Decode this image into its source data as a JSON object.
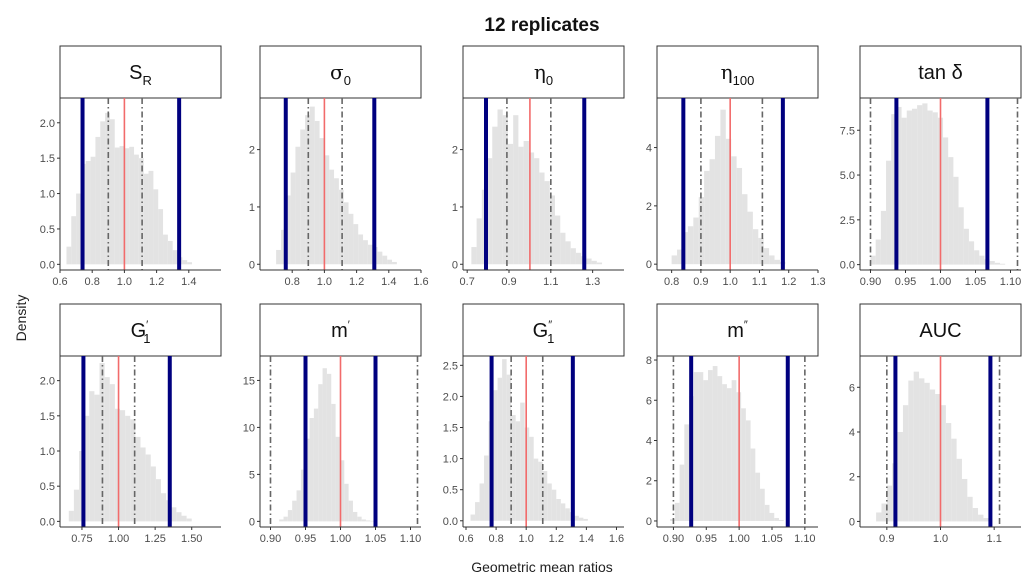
{
  "figure": {
    "title": "12 replicates",
    "xlabel": "Geometric mean ratios",
    "ylabel": "Density"
  },
  "colors": {
    "hist": "#e3e3e3",
    "center": "#f26b6b",
    "bound": "#00007f",
    "dash": "#666666",
    "strip_bg": "#ffffff",
    "strip_border": "#333333",
    "axis": "#333333"
  },
  "chart_data": [
    {
      "type": "bar",
      "strip_label": "S",
      "strip_sub": "R",
      "strip_sup": "",
      "strip_greek": false,
      "xlim": [
        0.6,
        1.6
      ],
      "ylim": [
        -0.08,
        2.35
      ],
      "xticks": [
        0.6,
        0.8,
        1.0,
        1.2,
        1.4
      ],
      "xtick_labels": [
        "0.6",
        "0.8",
        "1.0",
        "1.2",
        "1.4"
      ],
      "yticks": [
        0,
        0.5,
        1.0,
        1.5,
        2.0
      ],
      "ytick_labels": [
        "0.0",
        "0.5",
        "1.0",
        "1.5",
        "2.0"
      ],
      "center": 1.0,
      "bounds": [
        0.74,
        1.34
      ],
      "dashed": [
        0.9,
        1.11
      ],
      "bin_start": 0.64,
      "bin_width": 0.03,
      "values": [
        0.25,
        0.68,
        1.0,
        1.42,
        1.46,
        1.52,
        1.8,
        2.02,
        2.14,
        2.05,
        1.65,
        1.67,
        1.64,
        1.66,
        1.55,
        1.5,
        1.28,
        1.32,
        1.06,
        0.78,
        0.42,
        0.33,
        0.2,
        0.1,
        0.06,
        0.03
      ]
    },
    {
      "type": "bar",
      "strip_label": "σ",
      "strip_sub": "0",
      "strip_sup": "",
      "strip_greek": true,
      "xlim": [
        0.6,
        1.6
      ],
      "ylim": [
        -0.1,
        2.9
      ],
      "xticks": [
        0.8,
        1.0,
        1.2,
        1.4,
        1.6
      ],
      "xtick_labels": [
        "0.8",
        "1.0",
        "1.2",
        "1.4",
        "1.6"
      ],
      "yticks": [
        0,
        1,
        2
      ],
      "ytick_labels": [
        "0",
        "1",
        "2"
      ],
      "center": 1.0,
      "bounds": [
        0.76,
        1.31
      ],
      "dashed": [
        0.9,
        1.11
      ],
      "bin_start": 0.7,
      "bin_width": 0.03,
      "values": [
        0.25,
        0.6,
        1.2,
        1.6,
        2.05,
        2.35,
        2.6,
        2.75,
        2.5,
        2.2,
        1.9,
        1.65,
        1.5,
        1.3,
        1.08,
        0.88,
        0.7,
        0.52,
        0.42,
        0.34,
        0.3,
        0.22,
        0.15,
        0.08,
        0.04
      ]
    },
    {
      "type": "bar",
      "strip_label": "η",
      "strip_sub": "0",
      "strip_sup": "",
      "strip_greek": true,
      "xlim": [
        0.68,
        1.45
      ],
      "ylim": [
        -0.1,
        2.9
      ],
      "xticks": [
        0.7,
        0.9,
        1.1,
        1.3
      ],
      "xtick_labels": [
        "0.7",
        "0.9",
        "1.1",
        "1.3"
      ],
      "yticks": [
        0,
        1,
        2
      ],
      "ytick_labels": [
        "0",
        "1",
        "2"
      ],
      "center": 1.0,
      "bounds": [
        0.79,
        1.26
      ],
      "dashed": [
        0.89,
        1.1
      ],
      "bin_start": 0.72,
      "bin_width": 0.025,
      "values": [
        0.3,
        0.8,
        1.3,
        1.85,
        2.4,
        2.7,
        2.6,
        2.1,
        2.6,
        2.05,
        2.15,
        1.95,
        1.85,
        1.6,
        1.45,
        1.2,
        0.85,
        0.55,
        0.4,
        0.28,
        0.2,
        0.14,
        0.1,
        0.06,
        0.03
      ]
    },
    {
      "type": "bar",
      "strip_label": "η",
      "strip_sub": "100",
      "strip_sup": "",
      "strip_greek": true,
      "xlim": [
        0.75,
        1.3
      ],
      "ylim": [
        -0.2,
        5.7
      ],
      "xticks": [
        0.8,
        0.9,
        1.0,
        1.1,
        1.2,
        1.3
      ],
      "xtick_labels": [
        "0.8",
        "0.9",
        "1.0",
        "1.1",
        "1.2",
        "1.3"
      ],
      "yticks": [
        0,
        2,
        4
      ],
      "ytick_labels": [
        "0",
        "2",
        "4"
      ],
      "center": 1.0,
      "bounds": [
        0.84,
        1.18
      ],
      "dashed": [
        0.9,
        1.11
      ],
      "bin_start": 0.8,
      "bin_width": 0.0185,
      "values": [
        0.3,
        0.5,
        1.1,
        1.3,
        1.6,
        2.3,
        3.2,
        3.6,
        4.4,
        5.3,
        4.3,
        3.7,
        3.3,
        2.4,
        1.8,
        1.2,
        0.9,
        0.55,
        0.3,
        0.15,
        0.08
      ]
    },
    {
      "type": "bar",
      "strip_label": "tan δ",
      "strip_sub": "",
      "strip_sup": "",
      "strip_greek": false,
      "xlim": [
        0.885,
        1.115
      ],
      "ylim": [
        -0.3,
        9.3
      ],
      "xticks": [
        0.9,
        0.95,
        1.0,
        1.05,
        1.1
      ],
      "xtick_labels": [
        "0.90",
        "0.95",
        "1.00",
        "1.05",
        "1.10"
      ],
      "yticks": [
        0,
        2.5,
        5.0,
        7.5
      ],
      "ytick_labels": [
        "0.0",
        "2.5",
        "5.0",
        "7.5"
      ],
      "center": 1.0,
      "bounds": [
        0.937,
        1.067
      ],
      "dashed": [
        0.9,
        1.11
      ],
      "bin_start": 0.9,
      "bin_width": 0.0074,
      "values": [
        0.5,
        1.4,
        3.0,
        5.8,
        8.4,
        8.8,
        8.2,
        8.6,
        8.7,
        8.9,
        9.0,
        8.6,
        8.5,
        8.2,
        7.1,
        6.0,
        4.9,
        3.2,
        2.0,
        1.3,
        0.8,
        0.5,
        0.3,
        0.2,
        0.1,
        0.05
      ]
    },
    {
      "type": "bar",
      "strip_label": "G",
      "strip_sub": "1",
      "strip_sup": "′",
      "strip_greek": false,
      "xlim": [
        0.6,
        1.7
      ],
      "ylim": [
        -0.08,
        2.35
      ],
      "xticks": [
        0.75,
        1.0,
        1.25,
        1.5
      ],
      "xtick_labels": [
        "0.75",
        "1.00",
        "1.25",
        "1.50"
      ],
      "yticks": [
        0,
        0.5,
        1.0,
        1.5,
        2.0
      ],
      "ytick_labels": [
        "0.0",
        "0.5",
        "1.0",
        "1.5",
        "2.0"
      ],
      "center": 1.0,
      "bounds": [
        0.76,
        1.35
      ],
      "dashed": [
        0.89,
        1.11
      ],
      "bin_start": 0.66,
      "bin_width": 0.035,
      "values": [
        0.15,
        0.45,
        1.0,
        1.5,
        1.85,
        1.8,
        2.25,
        2.05,
        1.95,
        1.6,
        1.58,
        1.5,
        1.45,
        1.2,
        1.05,
        0.95,
        0.78,
        0.6,
        0.4,
        0.3,
        0.2,
        0.13,
        0.08,
        0.04
      ]
    },
    {
      "type": "bar",
      "strip_label": "m",
      "strip_sub": "",
      "strip_sup": "′",
      "strip_greek": false,
      "xlim": [
        0.885,
        1.115
      ],
      "ylim": [
        -0.6,
        17.6
      ],
      "xticks": [
        0.9,
        0.95,
        1.0,
        1.05,
        1.1
      ],
      "xtick_labels": [
        "0.90",
        "0.95",
        "1.00",
        "1.05",
        "1.10"
      ],
      "yticks": [
        0,
        5,
        10,
        15
      ],
      "ytick_labels": [
        "0",
        "5",
        "10",
        "15"
      ],
      "center": 1.0,
      "bounds": [
        0.95,
        1.05
      ],
      "dashed": [
        0.9,
        1.11
      ],
      "bin_start": 0.9,
      "bin_width": 0.0062,
      "values": [
        0,
        0,
        0.2,
        0.5,
        1.2,
        2.2,
        3.3,
        5.5,
        8.8,
        11.0,
        12.0,
        14.6,
        16.3,
        15.7,
        12.5,
        9.0,
        6.5,
        4.0,
        2.2,
        1.0,
        0.5,
        0.2,
        0.1,
        0.05
      ]
    },
    {
      "type": "bar",
      "strip_label": "G",
      "strip_sub": "1",
      "strip_sup": "″",
      "strip_greek": false,
      "xlim": [
        0.58,
        1.65
      ],
      "ylim": [
        -0.1,
        2.65
      ],
      "xticks": [
        0.6,
        0.8,
        1.0,
        1.2,
        1.4,
        1.6
      ],
      "xtick_labels": [
        "0.6",
        "0.8",
        "1.0",
        "1.2",
        "1.4",
        "1.6"
      ],
      "yticks": [
        0,
        0.5,
        1.0,
        1.5,
        2.0,
        2.5
      ],
      "ytick_labels": [
        "0.0",
        "0.5",
        "1.0",
        "1.5",
        "2.0",
        "2.5"
      ],
      "center": 1.0,
      "bounds": [
        0.77,
        1.31
      ],
      "dashed": [
        0.9,
        1.11
      ],
      "bin_start": 0.63,
      "bin_width": 0.03,
      "values": [
        0.1,
        0.3,
        0.6,
        1.05,
        1.6,
        2.1,
        2.3,
        2.6,
        2.35,
        1.7,
        1.6,
        1.9,
        1.5,
        1.35,
        1.0,
        0.95,
        0.8,
        0.6,
        0.5,
        0.35,
        0.28,
        0.2,
        0.14,
        0.08,
        0.05,
        0.03
      ]
    },
    {
      "type": "bar",
      "strip_label": "m",
      "strip_sub": "",
      "strip_sup": "″",
      "strip_greek": false,
      "xlim": [
        0.875,
        1.12
      ],
      "ylim": [
        -0.3,
        8.2
      ],
      "xticks": [
        0.9,
        0.95,
        1.0,
        1.05,
        1.1
      ],
      "xtick_labels": [
        "0.90",
        "0.95",
        "1.00",
        "1.05",
        "1.10"
      ],
      "yticks": [
        0,
        2,
        4,
        6,
        8
      ],
      "ytick_labels": [
        "0",
        "2",
        "4",
        "6",
        "8"
      ],
      "center": 1.0,
      "bounds": [
        0.927,
        1.074
      ],
      "dashed": [
        0.9,
        1.1
      ],
      "bin_start": 0.895,
      "bin_width": 0.0072,
      "values": [
        0.1,
        0.9,
        2.8,
        4.8,
        6.2,
        7.4,
        7.4,
        7.0,
        7.5,
        7.7,
        7.2,
        6.8,
        6.6,
        7.0,
        6.4,
        5.6,
        5.0,
        3.6,
        2.4,
        1.6,
        0.8,
        0.4,
        0.15,
        0.05
      ]
    },
    {
      "type": "bar",
      "strip_label": "AUC",
      "strip_sub": "",
      "strip_sup": "",
      "strip_greek": false,
      "xlim": [
        0.85,
        1.15
      ],
      "ylim": [
        -0.25,
        7.4
      ],
      "xticks": [
        0.9,
        1.0,
        1.1
      ],
      "xtick_labels": [
        "0.9",
        "1.0",
        "1.1"
      ],
      "yticks": [
        0,
        2,
        4,
        6
      ],
      "ytick_labels": [
        "0",
        "2",
        "4",
        "6"
      ],
      "center": 1.0,
      "bounds": [
        0.916,
        1.093
      ],
      "dashed": [
        0.9,
        1.11
      ],
      "bin_start": 0.88,
      "bin_width": 0.01,
      "values": [
        0.4,
        0.8,
        1.6,
        2.6,
        4.0,
        5.2,
        6.3,
        6.7,
        6.4,
        6.2,
        5.9,
        5.7,
        5.2,
        4.4,
        3.7,
        2.8,
        1.9,
        1.1,
        0.6,
        0.3,
        0.15
      ]
    }
  ]
}
